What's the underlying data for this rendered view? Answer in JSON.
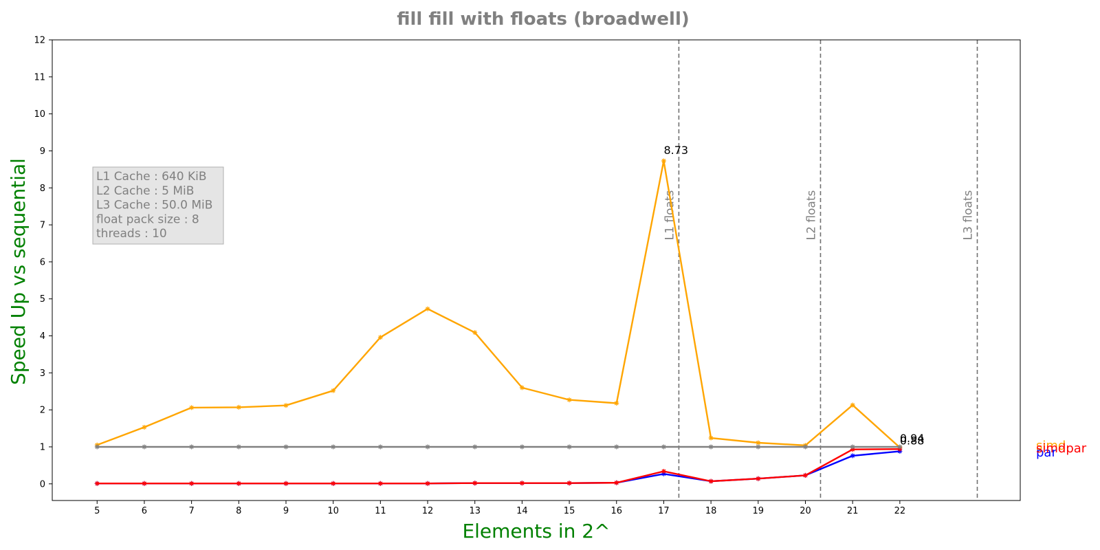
{
  "chart_data": {
    "type": "line",
    "title": "fill fill with floats  (broadwell)",
    "xlabel": "Elements in 2^",
    "ylabel": "Speed Up vs sequential",
    "x": [
      5,
      6,
      7,
      8,
      9,
      10,
      11,
      12,
      13,
      14,
      15,
      16,
      17,
      18,
      19,
      20,
      21,
      22
    ],
    "xlim": [
      4.05,
      24.55
    ],
    "ylim": [
      -0.45,
      12
    ],
    "yticks": [
      0,
      1,
      2,
      3,
      4,
      5,
      6,
      7,
      8,
      9,
      10,
      11,
      12
    ],
    "grid": false,
    "series": [
      {
        "name": "simd",
        "color": "#ffa500",
        "values": [
          1.05,
          1.53,
          2.06,
          2.07,
          2.12,
          2.52,
          3.96,
          4.73,
          4.09,
          2.6,
          2.27,
          2.18,
          8.73,
          1.24,
          1.11,
          1.04,
          2.13,
          0.98
        ]
      },
      {
        "name": "par",
        "color": "#0000ff",
        "values": [
          0.01,
          0.01,
          0.01,
          0.01,
          0.01,
          0.01,
          0.01,
          0.01,
          0.02,
          0.02,
          0.02,
          0.03,
          0.27,
          0.07,
          0.14,
          0.23,
          0.76,
          0.88
        ]
      },
      {
        "name": "simdpar",
        "color": "#ff0000",
        "values": [
          0.01,
          0.01,
          0.01,
          0.01,
          0.01,
          0.01,
          0.01,
          0.01,
          0.02,
          0.02,
          0.02,
          0.03,
          0.34,
          0.07,
          0.14,
          0.23,
          0.93,
          0.94
        ]
      },
      {
        "color": "#808080",
        "values": [
          1,
          1,
          1,
          1,
          1,
          1,
          1,
          1,
          1,
          1,
          1,
          1,
          1,
          1,
          1,
          1,
          1,
          1
        ]
      }
    ],
    "annotations": [
      {
        "x": 17,
        "y": 8.73,
        "text": "8.73"
      },
      {
        "x": 22,
        "y": 0.94,
        "text": "0.94"
      },
      {
        "x": 22,
        "y": 0.88,
        "text": "0.88"
      }
    ],
    "cache_lines": [
      {
        "x": 17.32,
        "label": "L1 floats"
      },
      {
        "x": 20.32,
        "label": "L2 floats"
      },
      {
        "x": 23.64,
        "label": "L3 floats"
      }
    ],
    "info_box": [
      "L1 Cache : 640 KiB",
      "L2 Cache : 5 MiB",
      "L3 Cache : 50.0 MiB",
      "float pack size : 8",
      "threads : 10"
    ]
  }
}
